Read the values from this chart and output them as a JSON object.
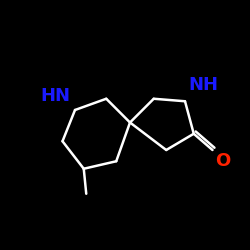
{
  "bg_color": "#000000",
  "bond_color": "#ffffff",
  "N_color": "#1a1aff",
  "O_color": "#ff2200",
  "label_HN": "HN",
  "label_NH": "NH",
  "label_O": "O",
  "font_size": 13,
  "line_width": 1.8,
  "figsize": [
    2.5,
    2.5
  ],
  "dpi": 100
}
